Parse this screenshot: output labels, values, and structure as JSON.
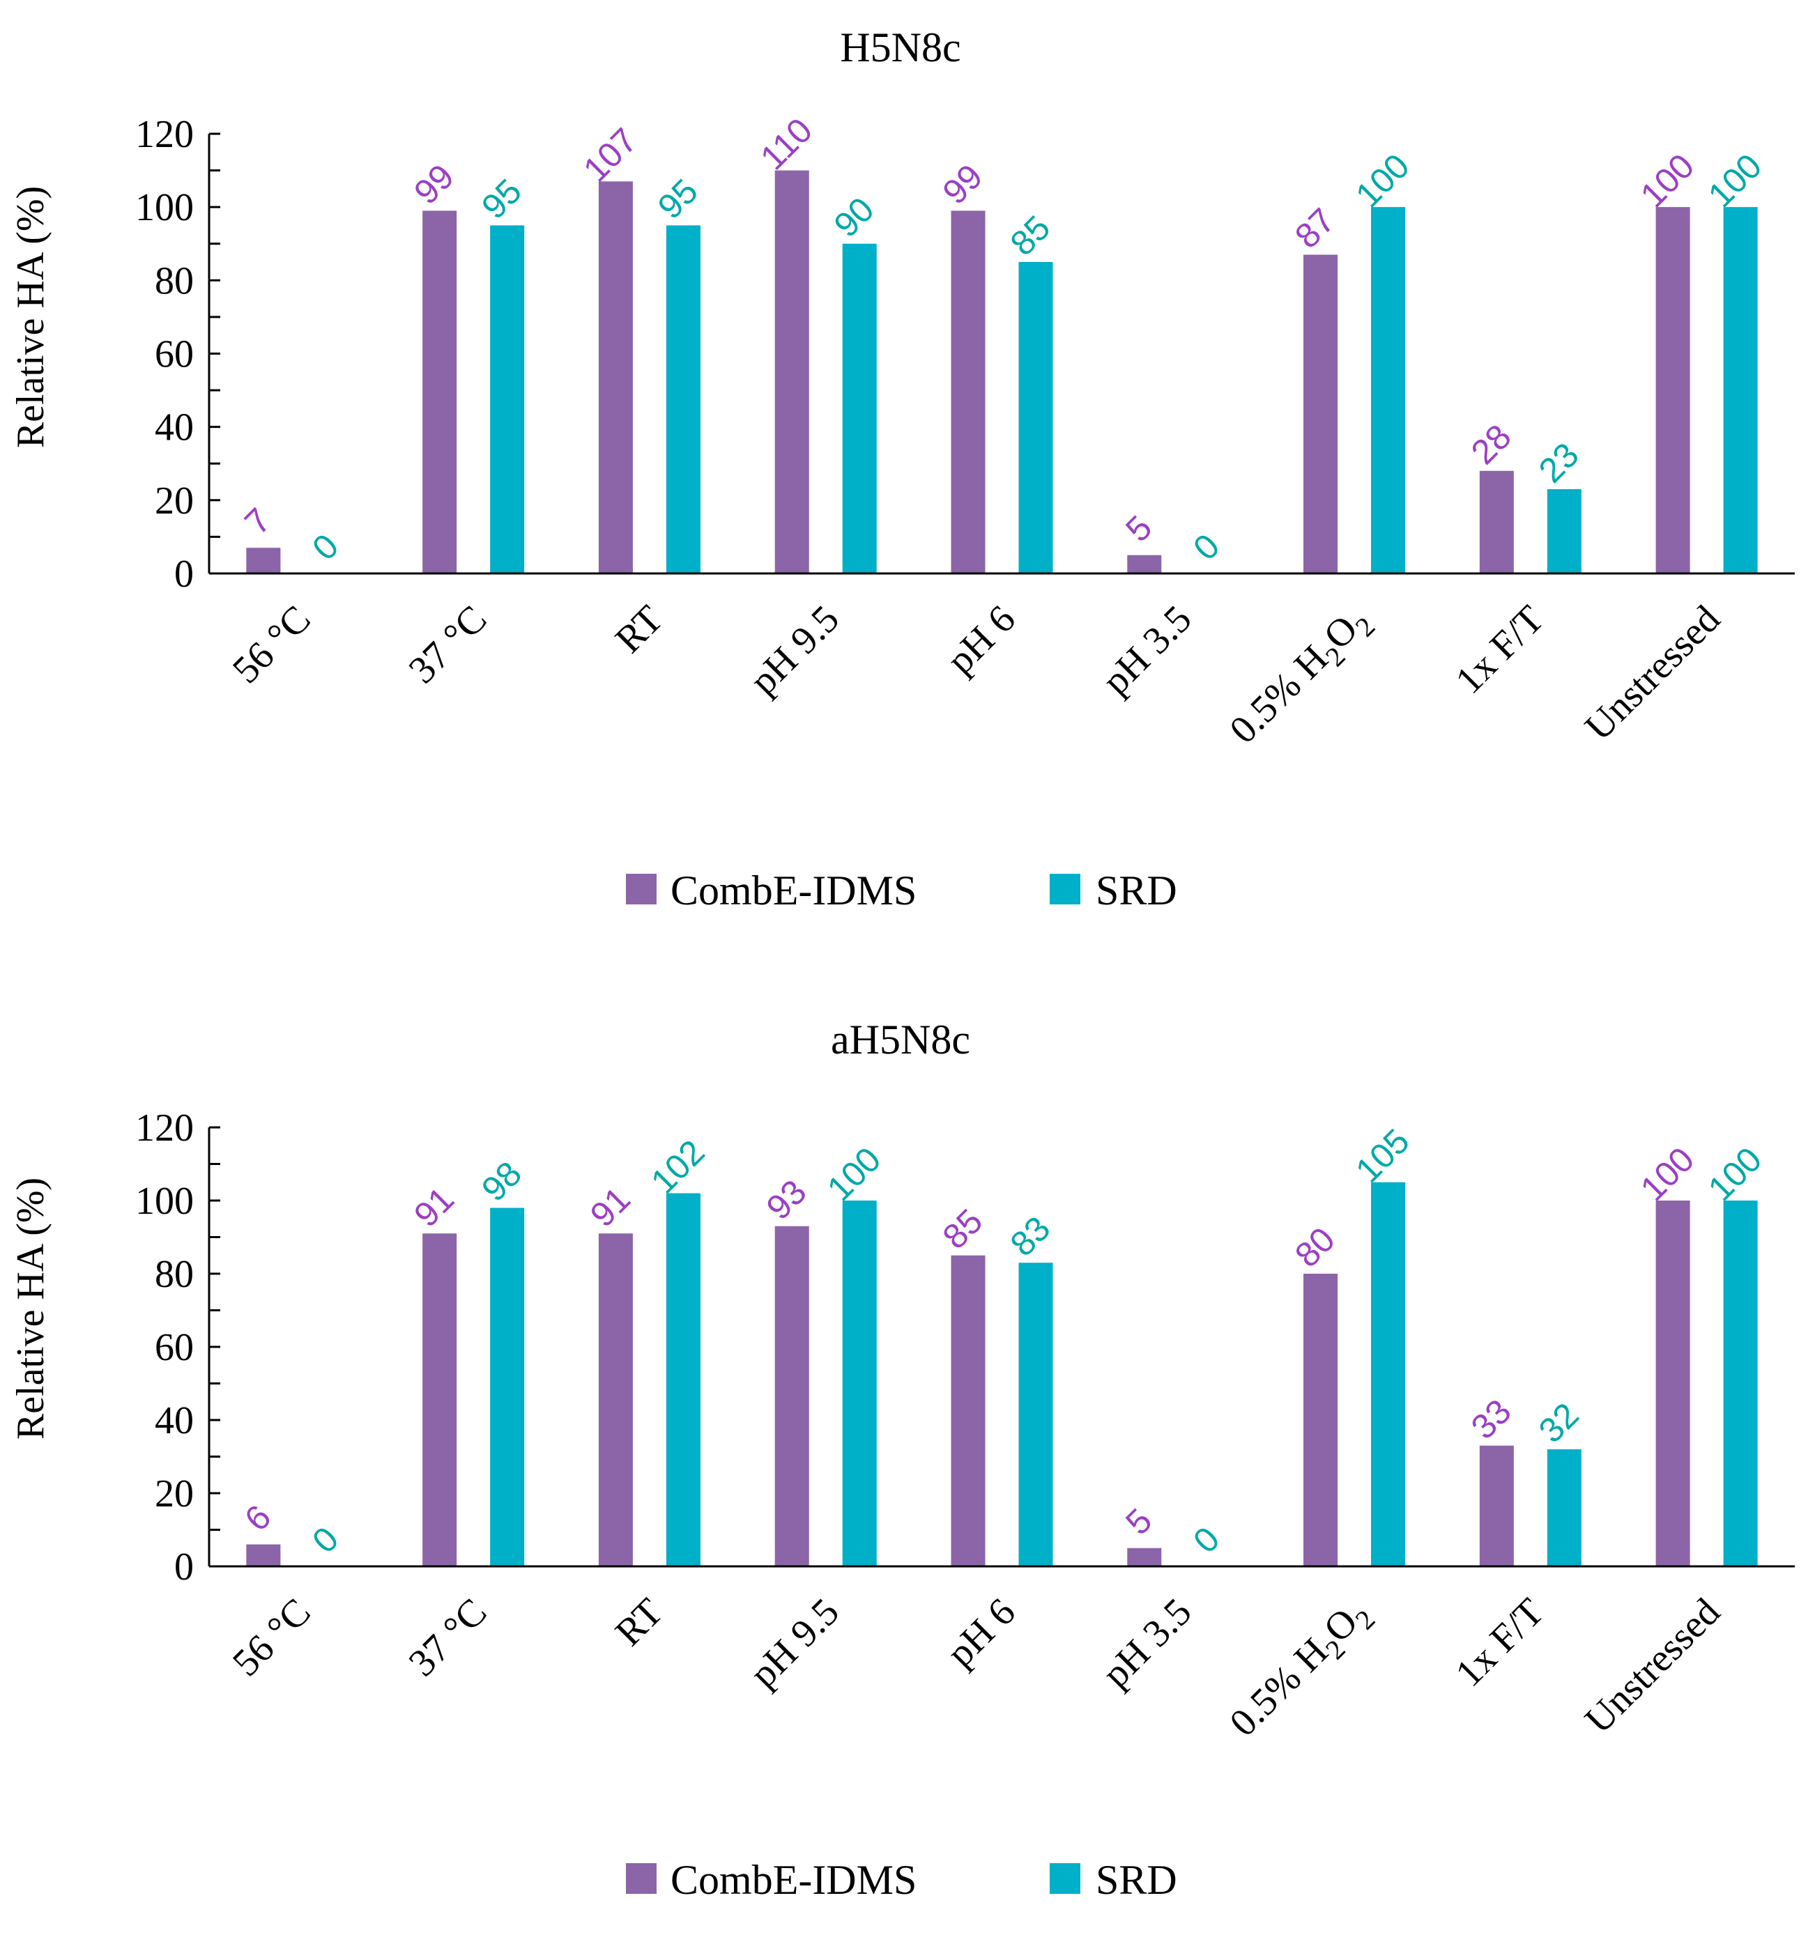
{
  "chart_data": [
    {
      "type": "bar",
      "title": "H5N8c",
      "xlabel": "",
      "ylabel": "Relative HA (%)",
      "ylim": [
        0,
        120
      ],
      "yticks": [
        0,
        20,
        40,
        60,
        80,
        100,
        120
      ],
      "categories": [
        "56 °C",
        "37 °C",
        "RT",
        "pH 9.5",
        "pH 6",
        "pH 3.5",
        "0.5% H2O2",
        "1x F/T",
        "Unstressed"
      ],
      "series": [
        {
          "name": "CombE-IDMS",
          "color": "#8c64a8",
          "label_color": "#9b3fc4",
          "values": [
            7,
            99,
            107,
            110,
            99,
            5,
            87,
            28,
            100
          ]
        },
        {
          "name": "SRD",
          "color": "#00afc8",
          "label_color": "#00a8a8",
          "values": [
            0,
            95,
            95,
            90,
            85,
            0,
            100,
            23,
            100
          ]
        }
      ],
      "legend": "bottom-center"
    },
    {
      "type": "bar",
      "title": "aH5N8c",
      "xlabel": "",
      "ylabel": "Relative HA (%)",
      "ylim": [
        0,
        120
      ],
      "yticks": [
        0,
        20,
        40,
        60,
        80,
        100,
        120
      ],
      "categories": [
        "56 °C",
        "37 °C",
        "RT",
        "pH 9.5",
        "pH 6",
        "pH 3.5",
        "0.5% H2O2",
        "1x F/T",
        "Unstressed"
      ],
      "series": [
        {
          "name": "CombE-IDMS",
          "color": "#8c64a8",
          "label_color": "#9b3fc4",
          "values": [
            6,
            91,
            91,
            93,
            85,
            5,
            80,
            33,
            100
          ]
        },
        {
          "name": "SRD",
          "color": "#00afc8",
          "label_color": "#00a8a8",
          "values": [
            0,
            98,
            102,
            100,
            83,
            0,
            105,
            32,
            100
          ]
        }
      ],
      "legend": "bottom-center"
    }
  ]
}
